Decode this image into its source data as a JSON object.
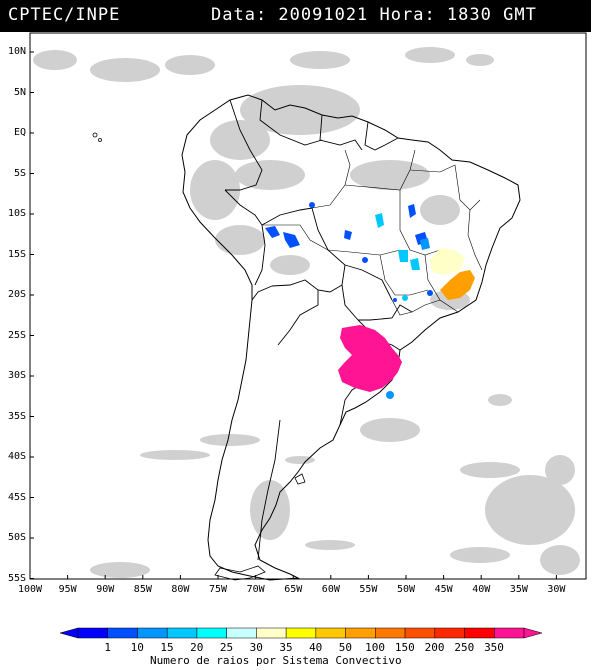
{
  "header": {
    "source": "CPTEC/INPE",
    "datetime": "Data: 20091021 Hora: 1830 GMT"
  },
  "lat_labels": [
    "10N",
    "5N",
    "EQ",
    "5S",
    "10S",
    "15S",
    "20S",
    "25S",
    "30S",
    "35S",
    "40S",
    "45S",
    "50S",
    "55S"
  ],
  "lon_labels": [
    "100W",
    "95W",
    "90W",
    "85W",
    "80W",
    "75W",
    "70W",
    "65W",
    "60W",
    "55W",
    "50W",
    "45W",
    "40W",
    "35W",
    "30W"
  ],
  "colorbar": {
    "title": "Numero de raios por Sistema Convectivo",
    "ticks": [
      "1",
      "10",
      "15",
      "20",
      "25",
      "30",
      "35",
      "40",
      "50",
      "100",
      "150",
      "200",
      "250",
      "350"
    ],
    "colors": [
      "#0000ff",
      "#0050ff",
      "#0096ff",
      "#00c8ff",
      "#00ffff",
      "#c8ffff",
      "#ffffc8",
      "#ffff00",
      "#ffc800",
      "#ffa000",
      "#ff7800",
      "#ff5000",
      "#ff2800",
      "#ff0000",
      "#ff1493"
    ]
  },
  "systems": [
    {
      "name": "south-brazil-uruguay-system",
      "color": "#ff1493",
      "value_range": "350+"
    },
    {
      "name": "minas-gerais-system",
      "color": "#ffa000",
      "value_range": "100-150"
    },
    {
      "name": "bahia-system",
      "color": "#ffffc8",
      "value_range": "30-35"
    },
    {
      "name": "bolivia-system",
      "color": "#0050ff",
      "value_range": "1-10"
    },
    {
      "name": "mato-grosso-system",
      "color": "#00c8ff",
      "value_range": "15-25"
    }
  ]
}
